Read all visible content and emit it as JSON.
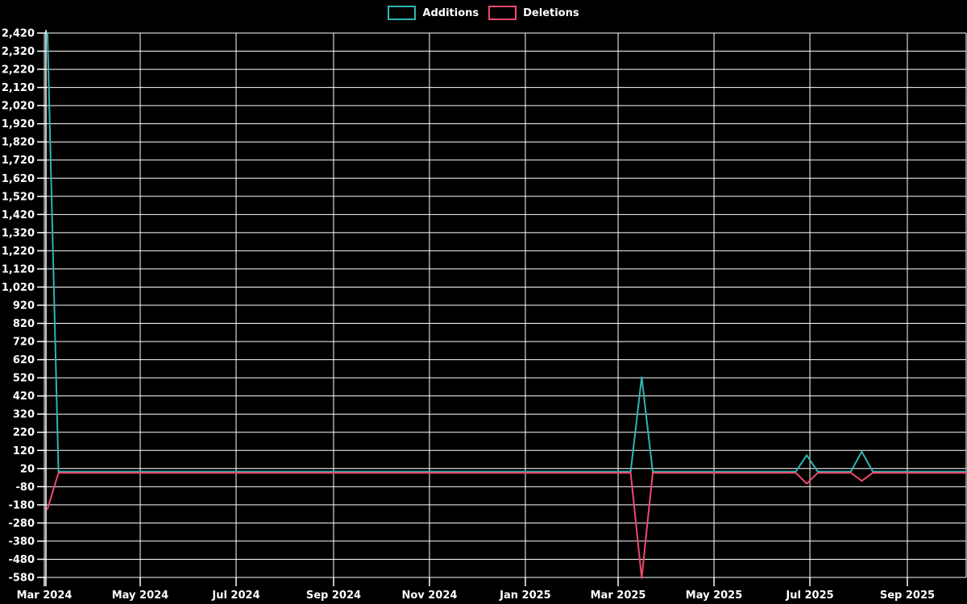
{
  "chart": {
    "background": "#000000",
    "legend": {
      "items": [
        {
          "id": "additions",
          "label": "Additions",
          "color": "#2fb5b3"
        },
        {
          "id": "deletions",
          "label": "Deletions",
          "color": "#ef4a6e"
        }
      ]
    },
    "chart_data": {
      "type": "line",
      "title": "",
      "grid": true,
      "legend_position": "top-center",
      "background_color": "#000000",
      "gridline_color": "#ffffff",
      "x_axis": {
        "ticks": [
          {
            "label": "Mar 2024",
            "date": "2024-03-01"
          },
          {
            "label": "May 2024",
            "date": "2024-05-01"
          },
          {
            "label": "Jul 2024",
            "date": "2024-07-01"
          },
          {
            "label": "Sep 2024",
            "date": "2024-09-01"
          },
          {
            "label": "Nov 2024",
            "date": "2024-11-01"
          },
          {
            "label": "Jan 2025",
            "date": "2025-01-01"
          },
          {
            "label": "Mar 2025",
            "date": "2025-03-01"
          },
          {
            "label": "May 2025",
            "date": "2025-05-01"
          },
          {
            "label": "Jul 2025",
            "date": "2025-07-01"
          },
          {
            "label": "Sep 2025",
            "date": "2025-09-01"
          }
        ]
      },
      "y_axis": {
        "min": -580,
        "max": 2420,
        "step": 100,
        "tick_labels": [
          "2,420",
          "2,320",
          "2,220",
          "2,120",
          "2,020",
          "1,920",
          "1,820",
          "1,720",
          "1,620",
          "1,520",
          "1,420",
          "1,320",
          "1,220",
          "1,120",
          "1,020",
          "920",
          "820",
          "720",
          "620",
          "520",
          "420",
          "320",
          "220",
          "120",
          "20",
          "-80",
          "-180",
          "-280",
          "-380",
          "-480",
          "-580"
        ]
      },
      "series": [
        {
          "name": "Additions",
          "color": "#2fb5b3",
          "points": [
            [
              "2024-03-03",
              2420
            ],
            [
              "2024-03-10",
              0
            ],
            [
              "2025-03-09",
              0
            ],
            [
              "2025-03-16",
              520
            ],
            [
              "2025-03-23",
              0
            ],
            [
              "2025-06-22",
              0
            ],
            [
              "2025-06-29",
              90
            ],
            [
              "2025-07-06",
              0
            ],
            [
              "2025-07-27",
              0
            ],
            [
              "2025-08-03",
              110
            ],
            [
              "2025-08-10",
              0
            ],
            [
              "2025-10-12",
              0
            ]
          ]
        },
        {
          "name": "Deletions",
          "color": "#ef4a6e",
          "points": [
            [
              "2024-03-03",
              -200
            ],
            [
              "2024-03-10",
              0
            ],
            [
              "2025-03-09",
              0
            ],
            [
              "2025-03-16",
              -580
            ],
            [
              "2025-03-23",
              0
            ],
            [
              "2025-06-22",
              0
            ],
            [
              "2025-06-29",
              -60
            ],
            [
              "2025-07-06",
              0
            ],
            [
              "2025-07-27",
              0
            ],
            [
              "2025-08-03",
              -45
            ],
            [
              "2025-08-10",
              0
            ],
            [
              "2025-10-12",
              0
            ]
          ]
        }
      ]
    }
  }
}
